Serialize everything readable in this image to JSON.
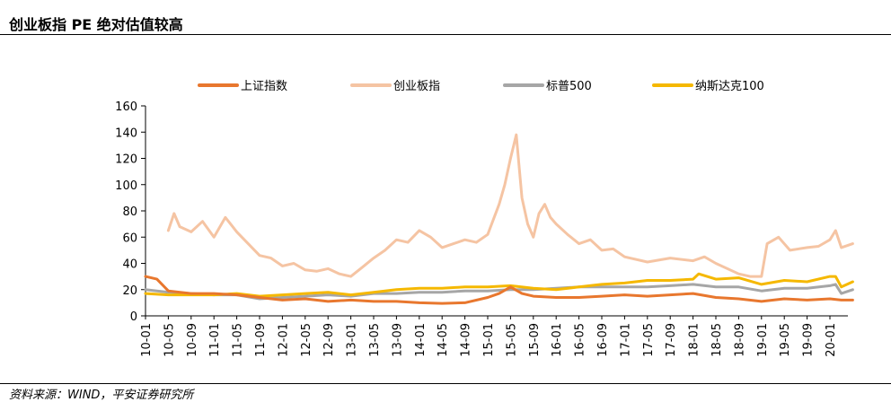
{
  "title": "创业板指 PE 绝对估值较高",
  "source": "资料来源：WIND，平安证券研究所",
  "chart_data": {
    "type": "line",
    "title": "创业板指 PE 绝对估值较高",
    "xlabel": "",
    "ylabel": "",
    "ylim": [
      0,
      160
    ],
    "yticks": [
      0,
      20,
      40,
      60,
      80,
      100,
      120,
      140,
      160
    ],
    "xticks": [
      "10-01",
      "10-05",
      "10-09",
      "11-01",
      "11-05",
      "11-09",
      "12-01",
      "12-05",
      "12-09",
      "13-01",
      "13-05",
      "13-09",
      "14-01",
      "14-05",
      "14-09",
      "15-01",
      "15-05",
      "15-09",
      "16-01",
      "16-05",
      "16-09",
      "17-01",
      "17-05",
      "17-09",
      "18-01",
      "18-05",
      "18-09",
      "19-01",
      "19-05",
      "19-09",
      "20-01"
    ],
    "grid": false,
    "legend_position": "top",
    "series": [
      {
        "name": "上证指数",
        "color": "#E8772E",
        "points": [
          [
            "10-01",
            30
          ],
          [
            "10-03",
            28
          ],
          [
            "10-05",
            19
          ],
          [
            "10-09",
            17
          ],
          [
            "11-01",
            17
          ],
          [
            "11-05",
            16
          ],
          [
            "11-09",
            14
          ],
          [
            "12-01",
            12
          ],
          [
            "12-05",
            13
          ],
          [
            "12-09",
            11
          ],
          [
            "13-01",
            12
          ],
          [
            "13-05",
            11
          ],
          [
            "13-09",
            11
          ],
          [
            "14-01",
            10
          ],
          [
            "14-05",
            9.5
          ],
          [
            "14-09",
            10
          ],
          [
            "15-01",
            14
          ],
          [
            "15-03",
            17
          ],
          [
            "15-05",
            22
          ],
          [
            "15-07",
            17
          ],
          [
            "15-09",
            15
          ],
          [
            "16-01",
            14
          ],
          [
            "16-05",
            14
          ],
          [
            "16-09",
            15
          ],
          [
            "17-01",
            16
          ],
          [
            "17-05",
            15
          ],
          [
            "17-09",
            16
          ],
          [
            "18-01",
            17
          ],
          [
            "18-05",
            14
          ],
          [
            "18-09",
            13
          ],
          [
            "19-01",
            11
          ],
          [
            "19-05",
            13
          ],
          [
            "19-09",
            12
          ],
          [
            "20-01",
            13
          ],
          [
            "20-03",
            12
          ],
          [
            "20-05",
            12
          ]
        ]
      },
      {
        "name": "创业板指",
        "color": "#F5C4A3",
        "points": [
          [
            "10-05",
            65
          ],
          [
            "10-06",
            78
          ],
          [
            "10-07",
            68
          ],
          [
            "10-09",
            64
          ],
          [
            "10-11",
            72
          ],
          [
            "11-01",
            60
          ],
          [
            "11-03",
            75
          ],
          [
            "11-05",
            64
          ],
          [
            "11-07",
            55
          ],
          [
            "11-09",
            46
          ],
          [
            "11-11",
            44
          ],
          [
            "12-01",
            38
          ],
          [
            "12-03",
            40
          ],
          [
            "12-05",
            35
          ],
          [
            "12-07",
            34
          ],
          [
            "12-09",
            36
          ],
          [
            "12-11",
            32
          ],
          [
            "13-01",
            30
          ],
          [
            "13-03",
            37
          ],
          [
            "13-05",
            44
          ],
          [
            "13-07",
            50
          ],
          [
            "13-09",
            58
          ],
          [
            "13-11",
            56
          ],
          [
            "14-01",
            65
          ],
          [
            "14-03",
            60
          ],
          [
            "14-05",
            52
          ],
          [
            "14-07",
            55
          ],
          [
            "14-09",
            58
          ],
          [
            "14-11",
            56
          ],
          [
            "15-01",
            62
          ],
          [
            "15-03",
            85
          ],
          [
            "15-04",
            100
          ],
          [
            "15-05",
            120
          ],
          [
            "15-06",
            138
          ],
          [
            "15-07",
            90
          ],
          [
            "15-08",
            70
          ],
          [
            "15-09",
            60
          ],
          [
            "15-10",
            78
          ],
          [
            "15-11",
            85
          ],
          [
            "15-12",
            75
          ],
          [
            "16-01",
            70
          ],
          [
            "16-03",
            62
          ],
          [
            "16-05",
            55
          ],
          [
            "16-07",
            58
          ],
          [
            "16-09",
            50
          ],
          [
            "16-11",
            51
          ],
          [
            "17-01",
            45
          ],
          [
            "17-05",
            41
          ],
          [
            "17-09",
            44
          ],
          [
            "18-01",
            42
          ],
          [
            "18-03",
            45
          ],
          [
            "18-05",
            40
          ],
          [
            "18-09",
            32
          ],
          [
            "18-11",
            30
          ],
          [
            "19-01",
            30
          ],
          [
            "19-02",
            55
          ],
          [
            "19-04",
            60
          ],
          [
            "19-06",
            50
          ],
          [
            "19-09",
            52
          ],
          [
            "19-11",
            53
          ],
          [
            "20-01",
            58
          ],
          [
            "20-02",
            65
          ],
          [
            "20-03",
            52
          ],
          [
            "20-05",
            55
          ]
        ]
      },
      {
        "name": "标普500",
        "color": "#A6A6A6",
        "points": [
          [
            "10-01",
            20
          ],
          [
            "10-03",
            19
          ],
          [
            "10-05",
            18
          ],
          [
            "10-09",
            17
          ],
          [
            "11-01",
            16
          ],
          [
            "11-05",
            16
          ],
          [
            "11-09",
            13
          ],
          [
            "12-01",
            14
          ],
          [
            "12-05",
            15
          ],
          [
            "12-09",
            16
          ],
          [
            "13-01",
            15
          ],
          [
            "13-05",
            17
          ],
          [
            "13-09",
            17
          ],
          [
            "14-01",
            18
          ],
          [
            "14-05",
            18
          ],
          [
            "14-09",
            19
          ],
          [
            "15-01",
            19
          ],
          [
            "15-05",
            20
          ],
          [
            "15-09",
            20
          ],
          [
            "16-01",
            21
          ],
          [
            "16-05",
            22
          ],
          [
            "16-09",
            22
          ],
          [
            "17-01",
            22
          ],
          [
            "17-05",
            22
          ],
          [
            "17-09",
            23
          ],
          [
            "18-01",
            24
          ],
          [
            "18-05",
            22
          ],
          [
            "18-09",
            22
          ],
          [
            "19-01",
            19
          ],
          [
            "19-05",
            21
          ],
          [
            "19-09",
            21
          ],
          [
            "20-01",
            23
          ],
          [
            "20-02",
            24
          ],
          [
            "20-03",
            17
          ],
          [
            "20-05",
            20
          ]
        ]
      },
      {
        "name": "纳斯达克100",
        "color": "#F5B800",
        "points": [
          [
            "10-01",
            17
          ],
          [
            "10-05",
            16
          ],
          [
            "10-09",
            16
          ],
          [
            "11-01",
            16
          ],
          [
            "11-05",
            17
          ],
          [
            "11-09",
            15
          ],
          [
            "12-01",
            16
          ],
          [
            "12-05",
            17
          ],
          [
            "12-09",
            18
          ],
          [
            "13-01",
            16
          ],
          [
            "13-05",
            18
          ],
          [
            "13-09",
            20
          ],
          [
            "14-01",
            21
          ],
          [
            "14-05",
            21
          ],
          [
            "14-09",
            22
          ],
          [
            "15-01",
            22
          ],
          [
            "15-05",
            23
          ],
          [
            "15-09",
            21
          ],
          [
            "16-01",
            20
          ],
          [
            "16-05",
            22
          ],
          [
            "16-09",
            24
          ],
          [
            "17-01",
            25
          ],
          [
            "17-05",
            27
          ],
          [
            "17-09",
            27
          ],
          [
            "18-01",
            28
          ],
          [
            "18-02",
            32
          ],
          [
            "18-05",
            28
          ],
          [
            "18-09",
            29
          ],
          [
            "19-01",
            24
          ],
          [
            "19-05",
            27
          ],
          [
            "19-09",
            26
          ],
          [
            "20-01",
            30
          ],
          [
            "20-02",
            30
          ],
          [
            "20-03",
            22
          ],
          [
            "20-05",
            26
          ]
        ]
      }
    ]
  }
}
